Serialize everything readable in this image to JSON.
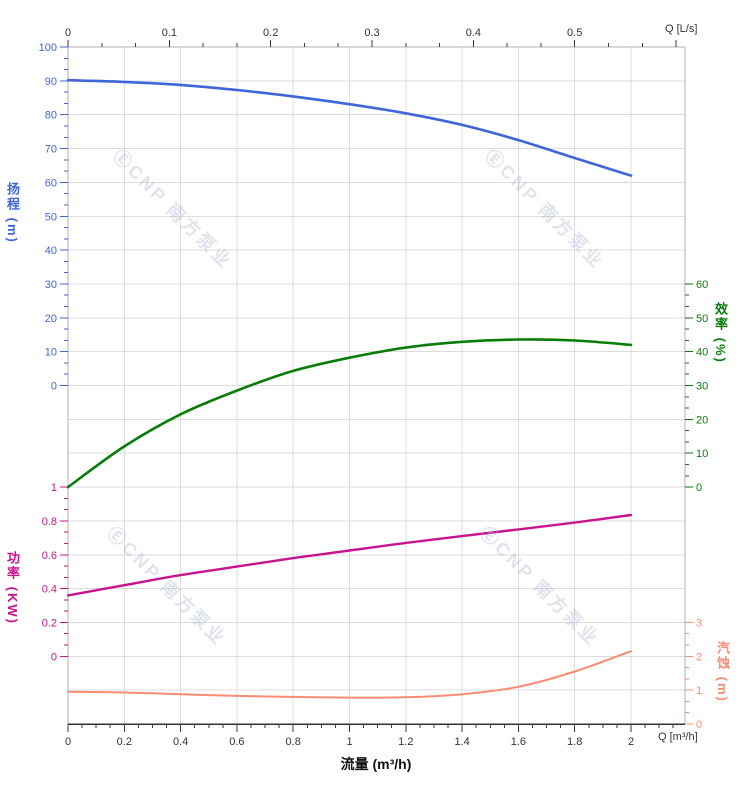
{
  "watermark": {
    "text": "ⒺCNP 南方泵业"
  },
  "axes": {
    "top": {
      "unit_label": "Q [L/s]",
      "tick_labels": [
        "0",
        "0.1",
        "0.2",
        "0.3",
        "0.4",
        "0.5"
      ],
      "tick_values": [
        0,
        0.1,
        0.2,
        0.3,
        0.4,
        0.5
      ],
      "color": "#3a3a3a"
    },
    "bottom": {
      "unit_label": "Q [m³/h]",
      "axis_title": "流量 (m³/h)",
      "tick_labels": [
        "0",
        "0.2",
        "0.4",
        "0.6",
        "0.8",
        "1",
        "1.2",
        "1.4",
        "1.6",
        "1.8",
        "2"
      ],
      "tick_values": [
        0,
        0.2,
        0.4,
        0.6,
        0.8,
        1,
        1.2,
        1.4,
        1.6,
        1.8,
        2
      ],
      "color": "#3a3a3a"
    },
    "head": {
      "title": "扬程 (m)",
      "color": "#3f66d8",
      "tick_labels": [
        "100",
        "90",
        "80",
        "70",
        "60",
        "50",
        "40",
        "30",
        "20",
        "10",
        "0"
      ],
      "tick_values": [
        100,
        90,
        80,
        70,
        60,
        50,
        40,
        30,
        20,
        10,
        0
      ],
      "range": [
        0,
        100
      ]
    },
    "power": {
      "title": "功率 (KW)",
      "color": "#c9138f",
      "tick_labels": [
        "1",
        "0.8",
        "0.6",
        "0.4",
        "0.2",
        "0"
      ],
      "tick_values": [
        1,
        0.8,
        0.6,
        0.4,
        0.2,
        0
      ],
      "range": [
        0,
        1
      ]
    },
    "efficiency": {
      "title": "效率 (%)",
      "color": "#0a7c0a",
      "tick_labels": [
        "60",
        "50",
        "40",
        "30",
        "20",
        "10",
        "0"
      ],
      "tick_values": [
        60,
        50,
        40,
        30,
        20,
        10,
        0
      ],
      "range": [
        0,
        60
      ]
    },
    "npsh": {
      "title": "汽蚀 (m)",
      "color": "#fb8b72",
      "tick_labels": [
        "3",
        "2",
        "1",
        "0"
      ],
      "tick_values": [
        3,
        2,
        1,
        0
      ],
      "range": [
        0,
        3
      ]
    }
  },
  "chart_data": {
    "type": "line",
    "title": "",
    "xlabel": "流量 (m³/h)",
    "x_units": [
      "m³/h",
      "L/s"
    ],
    "x_range_m3h": [
      0,
      2.2
    ],
    "grid": true,
    "x": [
      0,
      0.2,
      0.4,
      0.6,
      0.8,
      1.0,
      1.2,
      1.4,
      1.6,
      1.8,
      2.0
    ],
    "series": [
      {
        "name": "扬程 H",
        "axis": "head",
        "unit": "m",
        "color": "#3f66d8",
        "width": 2.6,
        "values": [
          90.2,
          89.7,
          88.8,
          87.3,
          85.4,
          83.1,
          80.4,
          77.0,
          72.5,
          67.2,
          62.0
        ]
      },
      {
        "name": "效率",
        "axis": "efficiency",
        "unit": "%",
        "color": "#0a7c0a",
        "width": 2.6,
        "values": [
          0,
          12.0,
          21.5,
          28.5,
          34.3,
          38.2,
          41.2,
          42.9,
          43.6,
          43.3,
          42.0
        ]
      },
      {
        "name": "功率 P",
        "axis": "power",
        "unit": "KW",
        "color": "#c9138f",
        "width": 2.4,
        "values": [
          0.36,
          0.42,
          0.48,
          0.53,
          0.58,
          0.625,
          0.67,
          0.71,
          0.75,
          0.79,
          0.835
        ]
      },
      {
        "name": "汽蚀 NPSH",
        "axis": "npsh",
        "unit": "m",
        "color": "#fb8b72",
        "width": 2.0,
        "values": [
          0.95,
          0.93,
          0.88,
          0.83,
          0.8,
          0.78,
          0.79,
          0.88,
          1.1,
          1.55,
          2.15
        ]
      }
    ]
  }
}
